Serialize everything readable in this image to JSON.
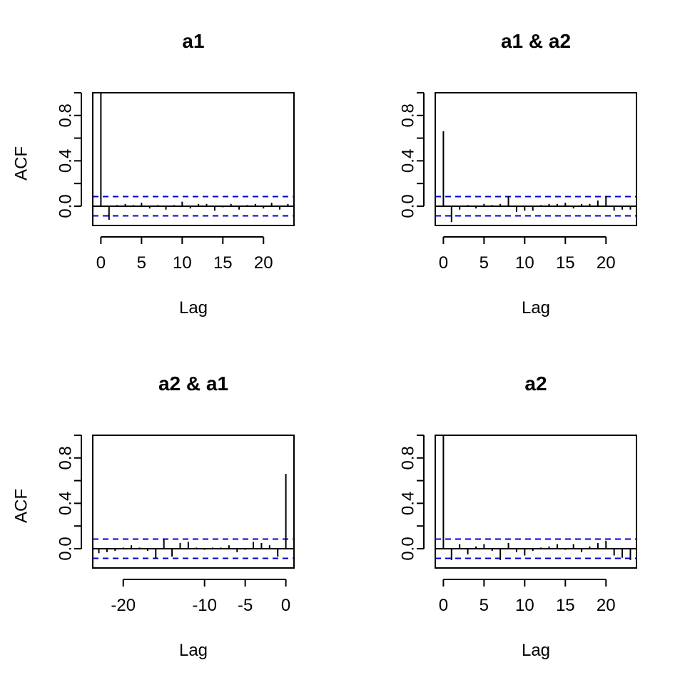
{
  "chart_data": [
    {
      "type": "bar",
      "subtype": "acf-spike",
      "title": "a1",
      "xlabel": "Lag",
      "ylabel": "ACF",
      "xlim": [
        -1,
        23.75
      ],
      "ylim": [
        -0.17,
        1.0
      ],
      "xticks": [
        0,
        5,
        10,
        15,
        20
      ],
      "yticks": [
        0.0,
        0.4,
        0.8
      ],
      "yticks_unlabeled": [
        0.2,
        0.6,
        1.0
      ],
      "xtick_labels": [
        "0",
        "5",
        "10",
        "15",
        "20"
      ],
      "ytick_labels": [
        "0.0",
        "0.4",
        "0.8"
      ],
      "conf_limit": 0.085,
      "x": [
        0,
        1,
        2,
        3,
        4,
        5,
        6,
        7,
        8,
        9,
        10,
        11,
        12,
        13,
        14,
        15,
        16,
        17,
        18,
        19,
        20,
        21,
        22,
        23
      ],
      "values": [
        1.0,
        -0.12,
        0.01,
        0.02,
        0.01,
        0.03,
        -0.02,
        0.01,
        -0.03,
        0.01,
        0.04,
        -0.02,
        0.02,
        0.02,
        -0.04,
        -0.01,
        0.02,
        -0.03,
        0.01,
        0.02,
        -0.02,
        0.03,
        -0.03,
        0.02
      ]
    },
    {
      "type": "bar",
      "subtype": "acf-spike",
      "title": "a1 & a2",
      "xlabel": "Lag",
      "ylabel": "",
      "xlim": [
        -1,
        23.75
      ],
      "ylim": [
        -0.17,
        1.0
      ],
      "xticks": [
        0,
        5,
        10,
        15,
        20
      ],
      "yticks": [
        0.0,
        0.4,
        0.8
      ],
      "yticks_unlabeled": [
        0.2,
        0.6,
        1.0
      ],
      "xtick_labels": [
        "0",
        "5",
        "10",
        "15",
        "20"
      ],
      "ytick_labels": [
        "0.0",
        "0.4",
        "0.8"
      ],
      "conf_limit": 0.085,
      "x": [
        0,
        1,
        2,
        3,
        4,
        5,
        6,
        7,
        8,
        9,
        10,
        11,
        12,
        13,
        14,
        15,
        16,
        17,
        18,
        19,
        20,
        21,
        22,
        23
      ],
      "values": [
        0.66,
        -0.14,
        -0.03,
        0.01,
        -0.02,
        0.02,
        0.01,
        0.02,
        0.09,
        -0.05,
        -0.04,
        -0.04,
        0.01,
        0.02,
        0.02,
        0.03,
        -0.02,
        0.02,
        0.02,
        0.05,
        0.09,
        -0.04,
        -0.03,
        -0.03
      ]
    },
    {
      "type": "bar",
      "subtype": "acf-spike",
      "title": "a2 & a1",
      "xlabel": "Lag",
      "ylabel": "ACF",
      "xlim": [
        -23.75,
        1
      ],
      "ylim": [
        -0.17,
        1.0
      ],
      "xticks": [
        -20,
        -10,
        -5,
        0
      ],
      "yticks": [
        0.0,
        0.4,
        0.8
      ],
      "yticks_unlabeled": [
        0.2,
        0.6,
        1.0
      ],
      "xtick_labels": [
        "-20",
        "-10",
        "-5",
        "0"
      ],
      "ytick_labels": [
        "0.0",
        "0.4",
        "0.8"
      ],
      "conf_limit": 0.085,
      "x": [
        -23,
        -22,
        -21,
        -20,
        -19,
        -18,
        -17,
        -16,
        -15,
        -14,
        -13,
        -12,
        -11,
        -10,
        -9,
        -8,
        -7,
        -6,
        -5,
        -4,
        -3,
        -2,
        -1,
        0
      ],
      "values": [
        -0.04,
        -0.03,
        -0.02,
        0.01,
        0.03,
        0.01,
        -0.02,
        -0.09,
        0.08,
        -0.07,
        0.05,
        0.06,
        0.01,
        -0.01,
        0.01,
        0.01,
        0.03,
        -0.03,
        -0.01,
        0.06,
        0.05,
        0.03,
        -0.07,
        0.66
      ]
    },
    {
      "type": "bar",
      "subtype": "acf-spike",
      "title": "a2",
      "xlabel": "Lag",
      "ylabel": "",
      "xlim": [
        -1,
        23.75
      ],
      "ylim": [
        -0.17,
        1.0
      ],
      "xticks": [
        0,
        5,
        10,
        15,
        20
      ],
      "yticks": [
        0.0,
        0.4,
        0.8
      ],
      "yticks_unlabeled": [
        0.2,
        0.6,
        1.0
      ],
      "xtick_labels": [
        "0",
        "5",
        "10",
        "15",
        "20"
      ],
      "ytick_labels": [
        "0.0",
        "0.4",
        "0.8"
      ],
      "conf_limit": 0.085,
      "x": [
        0,
        1,
        2,
        3,
        4,
        5,
        6,
        7,
        8,
        9,
        10,
        11,
        12,
        13,
        14,
        15,
        16,
        17,
        18,
        19,
        20,
        21,
        22,
        23
      ],
      "values": [
        1.0,
        -0.1,
        0.04,
        -0.05,
        0.02,
        0.04,
        -0.02,
        -0.1,
        0.05,
        -0.03,
        -0.06,
        -0.02,
        0.01,
        0.02,
        0.04,
        -0.01,
        0.04,
        -0.03,
        0.02,
        0.05,
        0.07,
        -0.06,
        -0.08,
        -0.1
      ]
    }
  ],
  "colors": {
    "spike": "#000000",
    "axis": "#000000",
    "conf_band": "#0000cd",
    "background": "#ffffff"
  }
}
